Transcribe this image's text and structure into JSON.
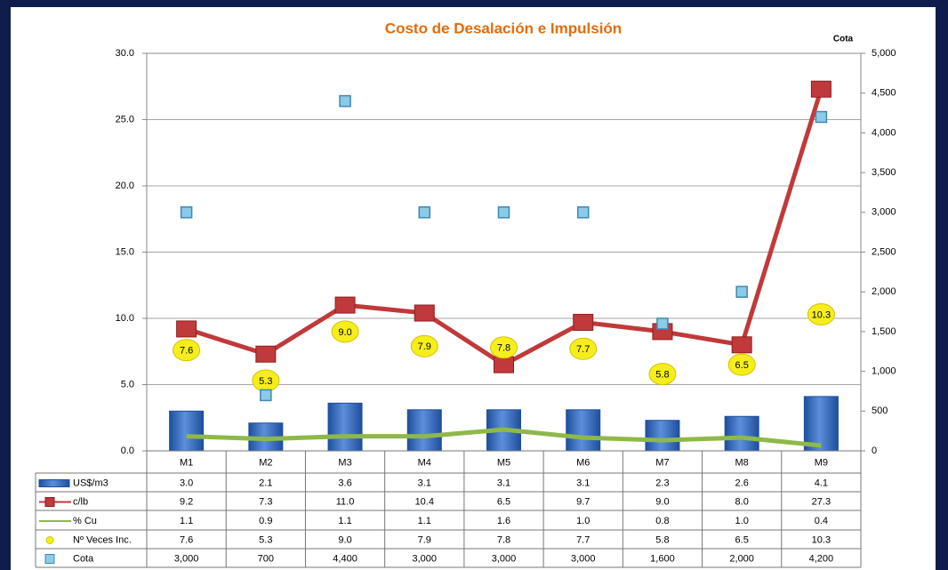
{
  "chart_data": {
    "type": "combo",
    "title": "Costo de Desalación e Impulsión",
    "y2label": "Cota",
    "categories": [
      "M1",
      "M2",
      "M3",
      "M4",
      "M5",
      "M6",
      "M7",
      "M8",
      "M9"
    ],
    "ylim": [
      0,
      30
    ],
    "yticks": [
      {
        "value": 0,
        "label": "0.0"
      },
      {
        "value": 5,
        "label": "5.0"
      },
      {
        "value": 10,
        "label": "10.0"
      },
      {
        "value": 15,
        "label": "15.0"
      },
      {
        "value": 20,
        "label": "20.0"
      },
      {
        "value": 25,
        "label": "25.0"
      },
      {
        "value": 30,
        "label": "30.0"
      }
    ],
    "y2lim": [
      0,
      5000
    ],
    "y2ticks": [
      0,
      500,
      {
        "value": 1000,
        "label": "1,000"
      },
      {
        "value": 1500,
        "label": "1,500"
      },
      {
        "value": 2000,
        "label": "2,000"
      },
      {
        "value": 2500,
        "label": "2,500"
      },
      {
        "value": 3000,
        "label": "3,000"
      },
      {
        "value": 3500,
        "label": "3,500"
      },
      {
        "value": 4000,
        "label": "4,000"
      },
      {
        "value": 4500,
        "label": "4,500"
      },
      {
        "value": 5000,
        "label": "5,000"
      }
    ],
    "grid": true,
    "series": [
      {
        "name": "US$/m3",
        "type": "bar",
        "color": "#3a6fc4",
        "values": [
          3.0,
          2.1,
          3.6,
          3.1,
          3.1,
          3.1,
          2.3,
          2.6,
          4.1
        ],
        "value_labels": [
          "3.0",
          "2.1",
          "3.6",
          "3.1",
          "3.1",
          "3.1",
          "2.3",
          "2.6",
          "4.1"
        ]
      },
      {
        "name": "c/lb",
        "type": "line-marker",
        "color": "#c0393b",
        "values": [
          9.2,
          7.3,
          11.0,
          10.4,
          6.5,
          9.7,
          9.0,
          8.0,
          27.3
        ],
        "value_labels": [
          "9.2",
          "7.3",
          "11.0",
          "10.4",
          "6.5",
          "9.7",
          "9.0",
          "8.0",
          "27.3"
        ]
      },
      {
        "name": "% Cu",
        "type": "line",
        "color": "#8fb84a",
        "values": [
          1.1,
          0.9,
          1.1,
          1.1,
          1.6,
          1.0,
          0.8,
          1.0,
          0.4
        ],
        "value_labels": [
          "1.1",
          "0.9",
          "1.1",
          "1.1",
          "1.6",
          "1.0",
          "0.8",
          "1.0",
          "0.4"
        ]
      },
      {
        "name": "Nº Veces Inc.",
        "type": "bubble-label",
        "color": "#f5ee1c",
        "values": [
          7.6,
          5.3,
          9.0,
          7.9,
          7.8,
          7.7,
          5.8,
          6.5,
          10.3
        ],
        "value_labels": [
          "7.6",
          "5.3",
          "9.0",
          "7.9",
          "7.8",
          "7.7",
          "5.8",
          "6.5",
          "10.3"
        ]
      },
      {
        "name": "Cota",
        "type": "scatter",
        "axis": "y2",
        "color": "#8ccbe8",
        "values": [
          3000,
          700,
          4400,
          3000,
          3000,
          3000,
          1600,
          2000,
          4200
        ],
        "value_labels": [
          "3,000",
          "700",
          "4,400",
          "3,000",
          "3,000",
          "3,000",
          "1,600",
          "2,000",
          "4,200"
        ]
      }
    ]
  }
}
